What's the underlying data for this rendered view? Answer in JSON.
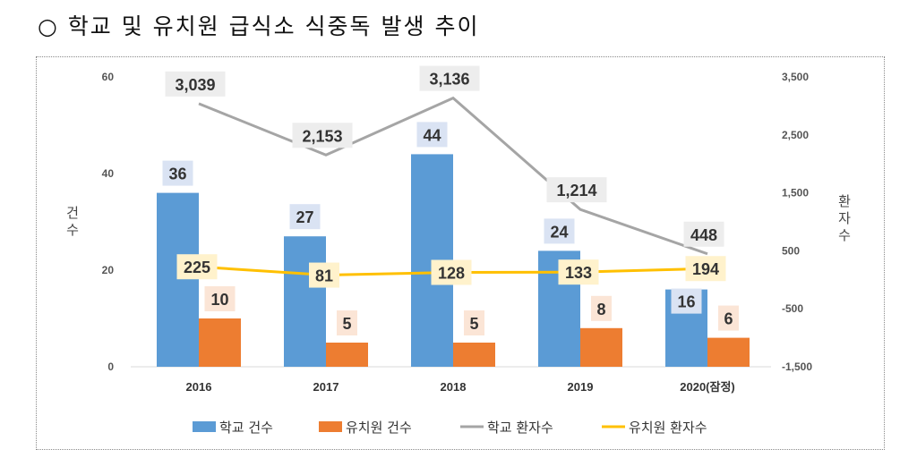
{
  "title": "○ 학교 및 유치원 급식소 식중독 발생 추이",
  "chart_data": {
    "type": "bar",
    "categories": [
      "2016",
      "2017",
      "2018",
      "2019",
      "2020(잠정)"
    ],
    "ylabel": "건수",
    "y2label": "환자수",
    "ylim": [
      0,
      60
    ],
    "yticks": [
      "0",
      "20",
      "40",
      "60"
    ],
    "y2lim": [
      -1500,
      3500
    ],
    "y2ticks": [
      "-1,500",
      "-500",
      "500",
      "1,500",
      "2,500",
      "3,500"
    ],
    "series": [
      {
        "name": "학교 건수",
        "type": "bar",
        "axis": "left",
        "color": "#5b9bd5",
        "values": [
          36,
          27,
          44,
          24,
          16
        ],
        "labels": [
          "36",
          "27",
          "44",
          "24",
          "16"
        ],
        "label_bg": "#dae3f3"
      },
      {
        "name": "유치원 건수",
        "type": "bar",
        "axis": "left",
        "color": "#ed7d31",
        "values": [
          10,
          5,
          5,
          8,
          6
        ],
        "labels": [
          "10",
          "5",
          "5",
          "8",
          "6"
        ],
        "label_bg": "#fbe5d6"
      },
      {
        "name": "학교 환자수",
        "type": "line",
        "axis": "right",
        "color": "#a5a5a5",
        "values": [
          3039,
          2153,
          3136,
          1214,
          448
        ],
        "labels": [
          "3,039",
          "2,153",
          "3,136",
          "1,214",
          "448"
        ],
        "label_bg": "#ededed"
      },
      {
        "name": "유치원 환자수",
        "type": "line",
        "axis": "right",
        "color": "#ffc000",
        "values": [
          225,
          81,
          128,
          133,
          194
        ],
        "labels": [
          "225",
          "81",
          "128",
          "133",
          "194"
        ],
        "label_bg": "#fff2cc"
      }
    ],
    "legend_position": "bottom",
    "grid": false
  }
}
